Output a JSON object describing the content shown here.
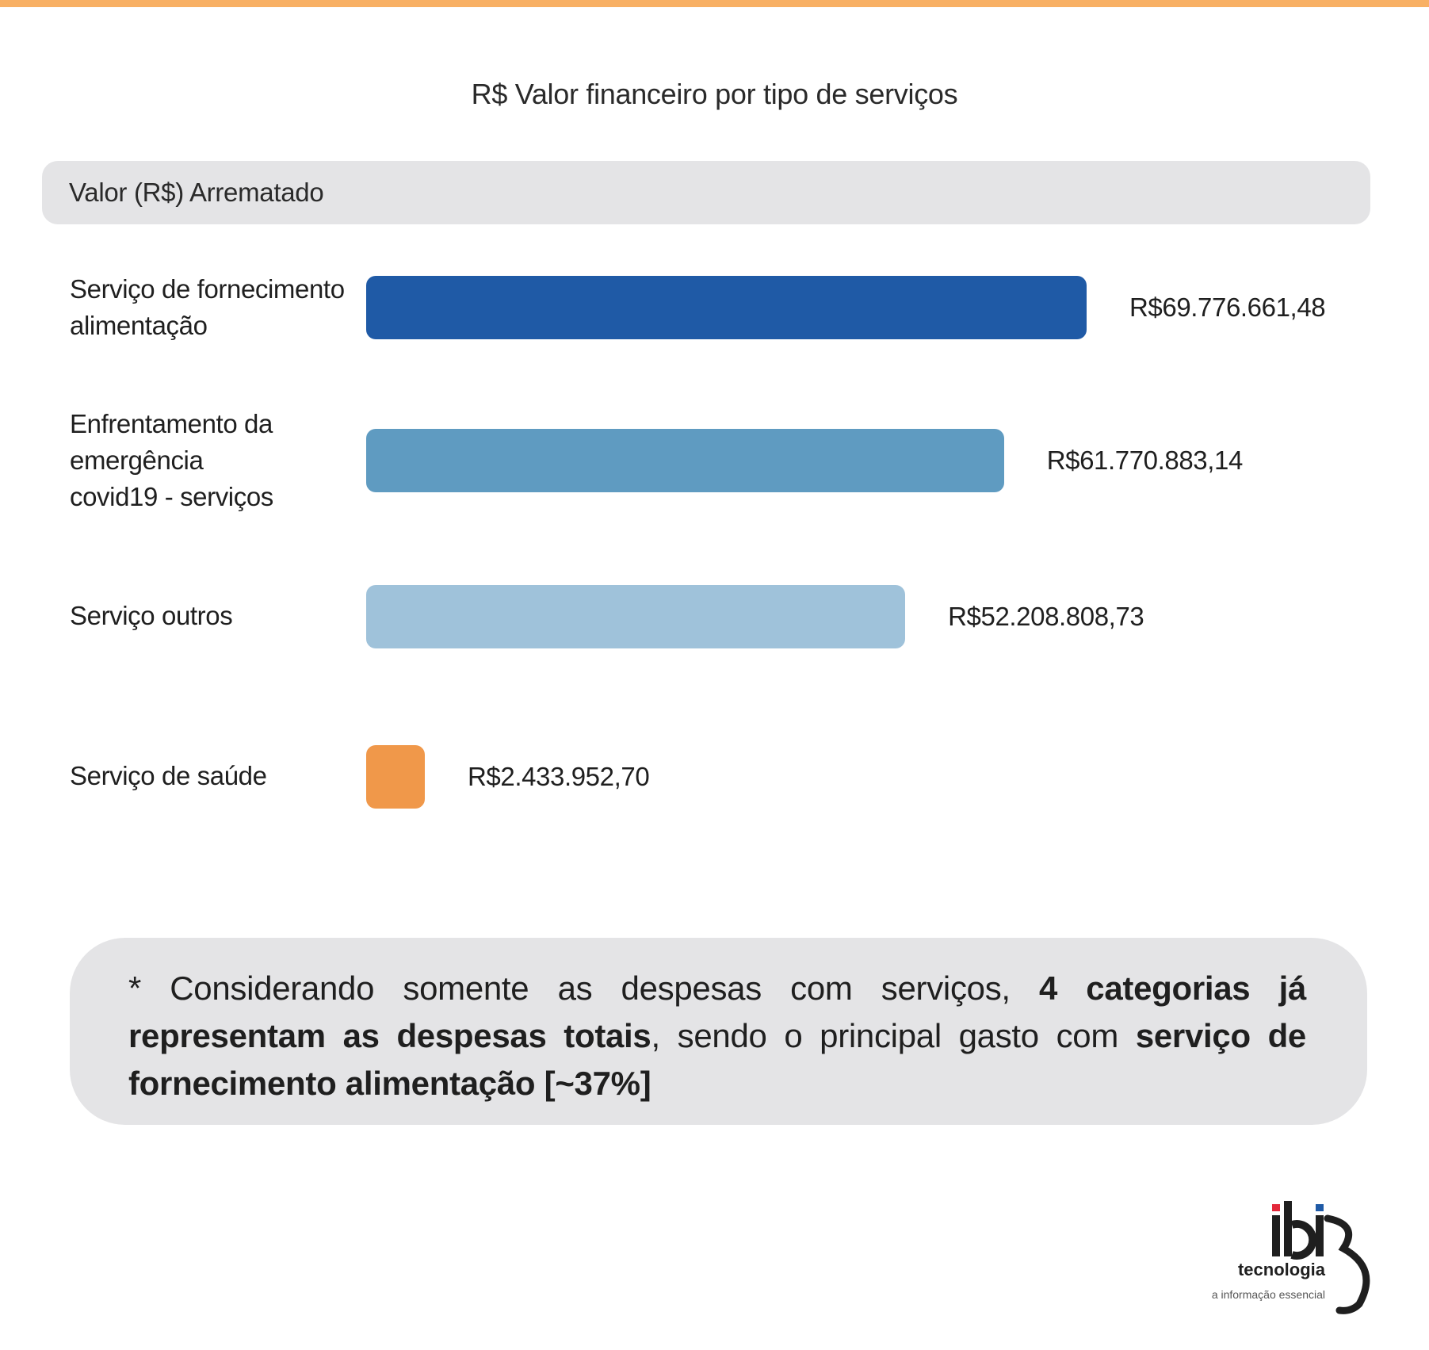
{
  "title": "R$ Valor financeiro por tipo de serviços",
  "header_label": "Valor (R$) Arrematado",
  "chart_data": {
    "type": "bar",
    "orientation": "horizontal",
    "title": "R$ Valor financeiro por tipo de serviços",
    "series_header": "Valor (R$) Arrematado",
    "categories": [
      "Serviço de fornecimento\nalimentação",
      "Enfrentamento da\nemergência\ncovid19 - serviços",
      "Serviço outros",
      "Serviço de saúde"
    ],
    "values": [
      69776661.48,
      61770883.14,
      52208808.73,
      2433952.7
    ],
    "value_labels": [
      "R$69.776.661,48",
      "R$61.770.883,14",
      "R$52.208.808,73",
      "R$2.433.952,70"
    ],
    "colors": [
      "#1f5aa6",
      "#5f9bc1",
      "#9fc2da",
      "#f0984a"
    ],
    "grid": false,
    "legend": "none"
  },
  "note": {
    "parts": [
      {
        "text": "* Considerando somente as despesas com serviços, ",
        "bold": false
      },
      {
        "text": "4 categorias já representam as despesas totais",
        "bold": true
      },
      {
        "text": ", sendo o principal gasto com ",
        "bold": false
      },
      {
        "text": "serviço de fornecimento alimentação [~37%]",
        "bold": true
      }
    ]
  },
  "logo": {
    "wordmark": "ibi",
    "name": "tecnologia",
    "tagline": "a informação essencial",
    "dot_colors": [
      "#e3283a",
      "#1f5aa6"
    ]
  },
  "colors": {
    "top_strip": "#f8b064",
    "panel_gray": "#e4e4e6"
  }
}
